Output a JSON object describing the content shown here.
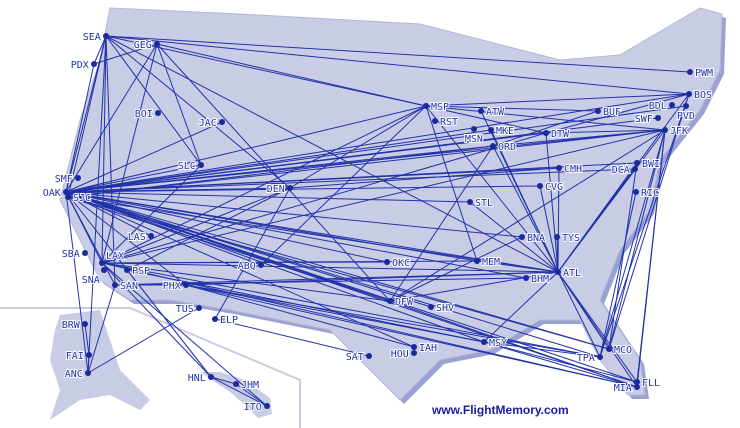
{
  "credit": "www.FlightMemory.com",
  "colors": {
    "land": "#c8cce4",
    "land_shadow": "#8d95cc",
    "route": "#2233aa",
    "airport": "#1a2a9a"
  },
  "airports": [
    "SEA",
    "GEG",
    "PDX",
    "BOI",
    "JAC",
    "SLC",
    "SMF",
    "OAK",
    "SJC",
    "DEN",
    "LAS",
    "SBA",
    "LAX",
    "SNA",
    "PSP",
    "SAN",
    "PHX",
    "TUS",
    "ABQ",
    "ELP",
    "OKC",
    "MEM",
    "ATL",
    "BHM",
    "DFW",
    "SHV",
    "SAT",
    "IAH",
    "HOU",
    "MSY",
    "MCO",
    "TPA",
    "FLL",
    "MIA",
    "BRW",
    "FAI",
    "ANC",
    "HNL",
    "JHM",
    "ITO",
    "MSP",
    "RST",
    "ATW",
    "MSN",
    "MKE",
    "ORD",
    "DTW",
    "BUF",
    "PWM",
    "BOS",
    "PVD",
    "BDL",
    "SWF",
    "JFK",
    "BWI",
    "DCA",
    "RIC",
    "CMH",
    "CVG",
    "STL",
    "BNA",
    "TYS"
  ],
  "routes": [
    [
      "OAK",
      "SEA"
    ],
    [
      "OAK",
      "PDX"
    ],
    [
      "OAK",
      "GEG"
    ],
    [
      "OAK",
      "SLC"
    ],
    [
      "OAK",
      "DEN"
    ],
    [
      "OAK",
      "MSP"
    ],
    [
      "OAK",
      "ORD"
    ],
    [
      "OAK",
      "DTW"
    ],
    [
      "OAK",
      "JFK"
    ],
    [
      "OAK",
      "BOS"
    ],
    [
      "OAK",
      "BWI"
    ],
    [
      "OAK",
      "ATL"
    ],
    [
      "OAK",
      "DFW"
    ],
    [
      "OAK",
      "IAH"
    ],
    [
      "OAK",
      "MSY"
    ],
    [
      "OAK",
      "MCO"
    ],
    [
      "OAK",
      "TPA"
    ],
    [
      "OAK",
      "MIA"
    ],
    [
      "OAK",
      "MEM"
    ],
    [
      "OAK",
      "CVG"
    ],
    [
      "OAK",
      "STL"
    ],
    [
      "OAK",
      "BNA"
    ],
    [
      "OAK",
      "LAS"
    ],
    [
      "OAK",
      "PHX"
    ],
    [
      "OAK",
      "LAX"
    ],
    [
      "OAK",
      "SAN"
    ],
    [
      "OAK",
      "ABQ"
    ],
    [
      "OAK",
      "OKC"
    ],
    [
      "OAK",
      "HNL"
    ],
    [
      "OAK",
      "ANC"
    ],
    [
      "OAK",
      "JAC"
    ],
    [
      "OAK",
      "PVD"
    ],
    [
      "OAK",
      "DCA"
    ],
    [
      "OAK",
      "CMH"
    ],
    [
      "OAK",
      "SHV"
    ],
    [
      "OAK",
      "BHM"
    ],
    [
      "OAK",
      "FLL"
    ],
    [
      "OAK",
      "SWF"
    ],
    [
      "OAK",
      "MKE"
    ],
    [
      "SJC",
      "ATL"
    ],
    [
      "SJC",
      "DFW"
    ],
    [
      "SJC",
      "ORD"
    ],
    [
      "SJC",
      "JFK"
    ],
    [
      "SJC",
      "SEA"
    ],
    [
      "SJC",
      "MCO"
    ],
    [
      "SEA",
      "MSP"
    ],
    [
      "SEA",
      "BOS"
    ],
    [
      "SEA",
      "SAN"
    ],
    [
      "SEA",
      "LAX"
    ],
    [
      "SEA",
      "DEN"
    ],
    [
      "SEA",
      "SLC"
    ],
    [
      "SEA",
      "ATL"
    ],
    [
      "SEA",
      "ANC"
    ],
    [
      "SEA",
      "PDX"
    ],
    [
      "GEG",
      "MSP"
    ],
    [
      "GEG",
      "SLC"
    ],
    [
      "GEG",
      "LAX"
    ],
    [
      "GEG",
      "PDX"
    ],
    [
      "GEG",
      "DFW"
    ],
    [
      "LAX",
      "ATL"
    ],
    [
      "LAX",
      "JFK"
    ],
    [
      "LAX",
      "DTW"
    ],
    [
      "LAX",
      "MSP"
    ],
    [
      "LAX",
      "DFW"
    ],
    [
      "LAX",
      "MIA"
    ],
    [
      "LAX",
      "HNL"
    ],
    [
      "LAX",
      "ITO"
    ],
    [
      "LAX",
      "MEM"
    ],
    [
      "LAX",
      "OKC"
    ],
    [
      "LAX",
      "SLC"
    ],
    [
      "LAX",
      "DEN"
    ],
    [
      "LAX",
      "TPA"
    ],
    [
      "SAN",
      "ATL"
    ],
    [
      "SAN",
      "PHX"
    ],
    [
      "SAN",
      "BHM"
    ],
    [
      "SAN",
      "ANC"
    ],
    [
      "PSP",
      "HNL"
    ],
    [
      "PSP",
      "MSY"
    ],
    [
      "PSP",
      "DEN"
    ],
    [
      "PHX",
      "ATL"
    ],
    [
      "PHX",
      "MSY"
    ],
    [
      "PHX",
      "TPA"
    ],
    [
      "PHX",
      "MIA"
    ],
    [
      "PHX",
      "IAH"
    ],
    [
      "TUS",
      "ANC"
    ],
    [
      "ELP",
      "SAT"
    ],
    [
      "ELP",
      "DEN"
    ],
    [
      "ABQ",
      "MSP"
    ],
    [
      "MSP",
      "ATL"
    ],
    [
      "MSP",
      "DTW"
    ],
    [
      "MSP",
      "BOS"
    ],
    [
      "MSP",
      "BUF"
    ],
    [
      "MSP",
      "MEM"
    ],
    [
      "MSP",
      "JFK"
    ],
    [
      "MSP",
      "DEN"
    ],
    [
      "ATL",
      "JFK"
    ],
    [
      "ATL",
      "BWI"
    ],
    [
      "ATL",
      "DCA"
    ],
    [
      "ATL",
      "BOS"
    ],
    [
      "ATL",
      "DTW"
    ],
    [
      "ATL",
      "ORD"
    ],
    [
      "ATL",
      "CMH"
    ],
    [
      "ATL",
      "MCO"
    ],
    [
      "ATL",
      "TPA"
    ],
    [
      "ATL",
      "MIA"
    ],
    [
      "ATL",
      "FLL"
    ],
    [
      "ATL",
      "MEM"
    ],
    [
      "ATL",
      "DFW"
    ],
    [
      "ATL",
      "MKE"
    ],
    [
      "ATL",
      "ATW"
    ],
    [
      "ATL",
      "CVG"
    ],
    [
      "ATL",
      "TYS"
    ],
    [
      "ATL",
      "STL"
    ],
    [
      "ATL",
      "MSY"
    ],
    [
      "DFW",
      "ORD"
    ],
    [
      "DFW",
      "JFK"
    ],
    [
      "DFW",
      "MIA"
    ],
    [
      "DFW",
      "BNA"
    ],
    [
      "MSY",
      "MIA"
    ],
    [
      "MSY",
      "TPA"
    ],
    [
      "MSY",
      "FLL"
    ],
    [
      "JFK",
      "MCO"
    ],
    [
      "JFK",
      "TPA"
    ],
    [
      "JFK",
      "MIA"
    ],
    [
      "JFK",
      "FLL"
    ],
    [
      "JFK",
      "DTW"
    ],
    [
      "BOS",
      "MCO"
    ],
    [
      "BOS",
      "TPA"
    ],
    [
      "BOS",
      "DTW"
    ],
    [
      "PWM",
      "SEA"
    ],
    [
      "BUF",
      "ORD"
    ],
    [
      "BRW",
      "FAI"
    ],
    [
      "FAI",
      "ANC"
    ],
    [
      "HNL",
      "JHM"
    ],
    [
      "JHM",
      "ITO"
    ],
    [
      "HNL",
      "ITO"
    ],
    [
      "ORD",
      "JFK"
    ],
    [
      "CMH",
      "DEN"
    ],
    [
      "RIC",
      "TPA"
    ],
    [
      "BWI",
      "MCO"
    ]
  ]
}
